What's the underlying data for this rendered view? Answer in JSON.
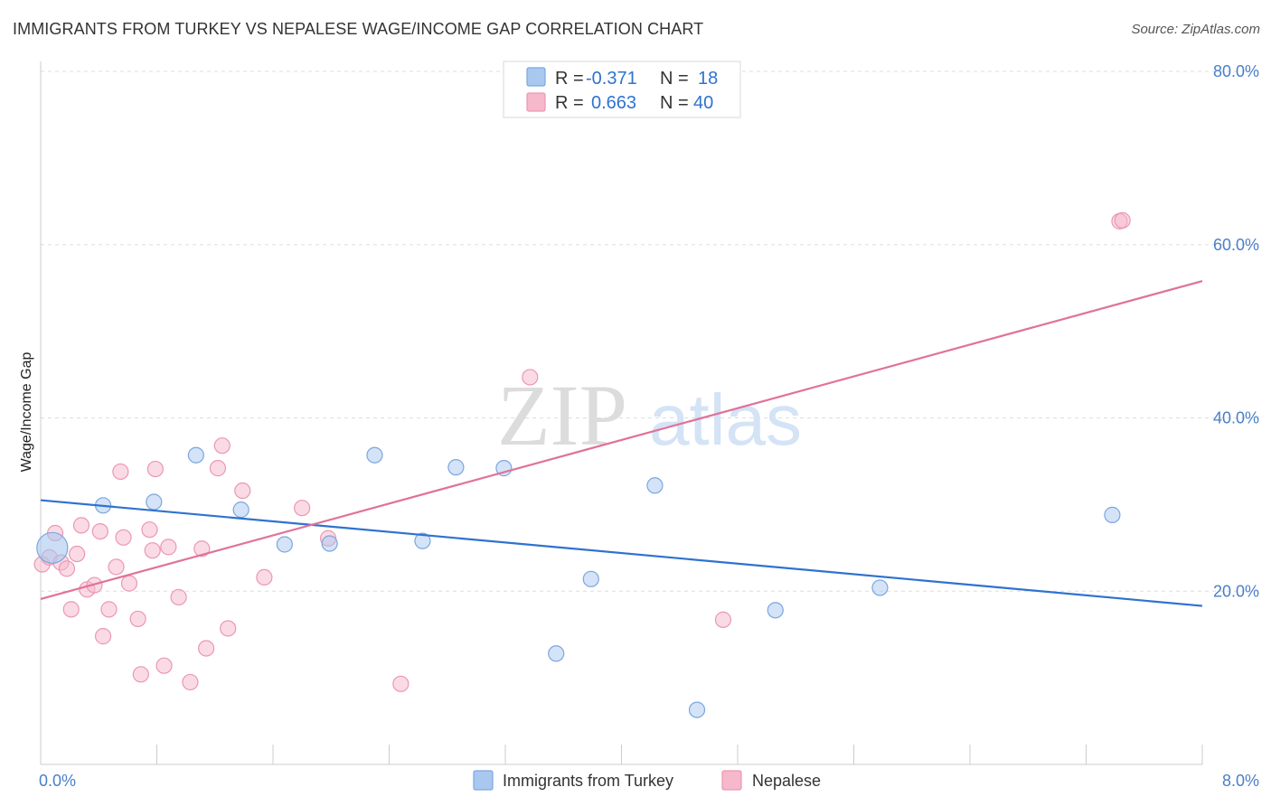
{
  "title": "IMMIGRANTS FROM TURKEY VS NEPALESE WAGE/INCOME GAP CORRELATION CHART",
  "source": "Source: ZipAtlas.com",
  "watermark": {
    "zip": "ZIP",
    "atlas": "atlas"
  },
  "colors": {
    "turkey_fill": "#a9c8f0",
    "turkey_stroke": "#7ba6df",
    "turkey_line": "#2f72d0",
    "nepal_fill": "#f6b8cb",
    "nepal_stroke": "#ec97b1",
    "nepal_line": "#e0729a",
    "tick_text": "#4a7fc8",
    "grid": "#dddddd"
  },
  "legend": {
    "rows": [
      {
        "r_label": "R =",
        "r_value": "-0.371",
        "n_label": "N =",
        "n_value": "18"
      },
      {
        "r_label": "R =",
        "r_value": "0.663",
        "n_label": "N =",
        "n_value": "40"
      }
    ]
  },
  "chart_data": {
    "type": "scatter",
    "title": "IMMIGRANTS FROM TURKEY VS NEPALESE WAGE/INCOME GAP CORRELATION CHART",
    "xlabel": "",
    "ylabel": "Wage/Income Gap",
    "xlim": [
      0,
      8
    ],
    "ylim": [
      0,
      80
    ],
    "x_tick_labels": [
      "0.0%",
      "8.0%"
    ],
    "y_ticks": [
      20,
      40,
      60,
      80
    ],
    "y_tick_labels": [
      "20.0%",
      "40.0%",
      "60.0%",
      "80.0%"
    ],
    "grid": "horizontal dashed",
    "legend_placement": "top-center and bottom",
    "series": [
      {
        "name": "Immigrants from Turkey",
        "r": -0.371,
        "n": 18,
        "trend": {
          "x": [
            0,
            8
          ],
          "y": [
            30.5,
            18.3
          ]
        },
        "points": [
          {
            "x": 0.08,
            "y": 25.0,
            "big": true
          },
          {
            "x": 0.43,
            "y": 29.9
          },
          {
            "x": 0.78,
            "y": 30.3
          },
          {
            "x": 1.07,
            "y": 35.7
          },
          {
            "x": 1.38,
            "y": 29.4
          },
          {
            "x": 1.68,
            "y": 25.4
          },
          {
            "x": 1.99,
            "y": 25.5
          },
          {
            "x": 2.3,
            "y": 35.7
          },
          {
            "x": 2.63,
            "y": 25.8
          },
          {
            "x": 2.86,
            "y": 34.3
          },
          {
            "x": 3.19,
            "y": 34.2
          },
          {
            "x": 3.55,
            "y": 12.8
          },
          {
            "x": 3.79,
            "y": 21.4
          },
          {
            "x": 4.23,
            "y": 32.2
          },
          {
            "x": 4.52,
            "y": 6.3
          },
          {
            "x": 5.06,
            "y": 17.8
          },
          {
            "x": 5.78,
            "y": 20.4
          },
          {
            "x": 7.38,
            "y": 28.8
          }
        ]
      },
      {
        "name": "Nepalese",
        "r": 0.663,
        "n": 40,
        "trend": {
          "x": [
            0,
            8
          ],
          "y": [
            19.1,
            55.8
          ]
        },
        "points": [
          {
            "x": 0.01,
            "y": 23.1
          },
          {
            "x": 0.06,
            "y": 23.9
          },
          {
            "x": 0.1,
            "y": 26.7
          },
          {
            "x": 0.14,
            "y": 23.3
          },
          {
            "x": 0.18,
            "y": 22.6
          },
          {
            "x": 0.21,
            "y": 17.9
          },
          {
            "x": 0.25,
            "y": 24.3
          },
          {
            "x": 0.28,
            "y": 27.6
          },
          {
            "x": 0.32,
            "y": 20.2
          },
          {
            "x": 0.37,
            "y": 20.7
          },
          {
            "x": 0.41,
            "y": 26.9
          },
          {
            "x": 0.43,
            "y": 14.8
          },
          {
            "x": 0.47,
            "y": 17.9
          },
          {
            "x": 0.52,
            "y": 22.8
          },
          {
            "x": 0.55,
            "y": 33.8
          },
          {
            "x": 0.57,
            "y": 26.2
          },
          {
            "x": 0.61,
            "y": 20.9
          },
          {
            "x": 0.67,
            "y": 16.8
          },
          {
            "x": 0.69,
            "y": 10.4
          },
          {
            "x": 0.75,
            "y": 27.1
          },
          {
            "x": 0.77,
            "y": 24.7
          },
          {
            "x": 0.79,
            "y": 34.1
          },
          {
            "x": 0.85,
            "y": 11.4
          },
          {
            "x": 0.88,
            "y": 25.1
          },
          {
            "x": 0.95,
            "y": 19.3
          },
          {
            "x": 1.03,
            "y": 9.5
          },
          {
            "x": 1.11,
            "y": 24.9
          },
          {
            "x": 1.14,
            "y": 13.4
          },
          {
            "x": 1.22,
            "y": 34.2
          },
          {
            "x": 1.25,
            "y": 36.8
          },
          {
            "x": 1.29,
            "y": 15.7
          },
          {
            "x": 1.39,
            "y": 31.6
          },
          {
            "x": 1.54,
            "y": 21.6
          },
          {
            "x": 1.8,
            "y": 29.6
          },
          {
            "x": 1.98,
            "y": 26.1
          },
          {
            "x": 2.48,
            "y": 9.3
          },
          {
            "x": 3.37,
            "y": 44.7
          },
          {
            "x": 4.7,
            "y": 16.7
          },
          {
            "x": 7.43,
            "y": 62.7
          },
          {
            "x": 7.45,
            "y": 62.8
          }
        ]
      }
    ]
  }
}
